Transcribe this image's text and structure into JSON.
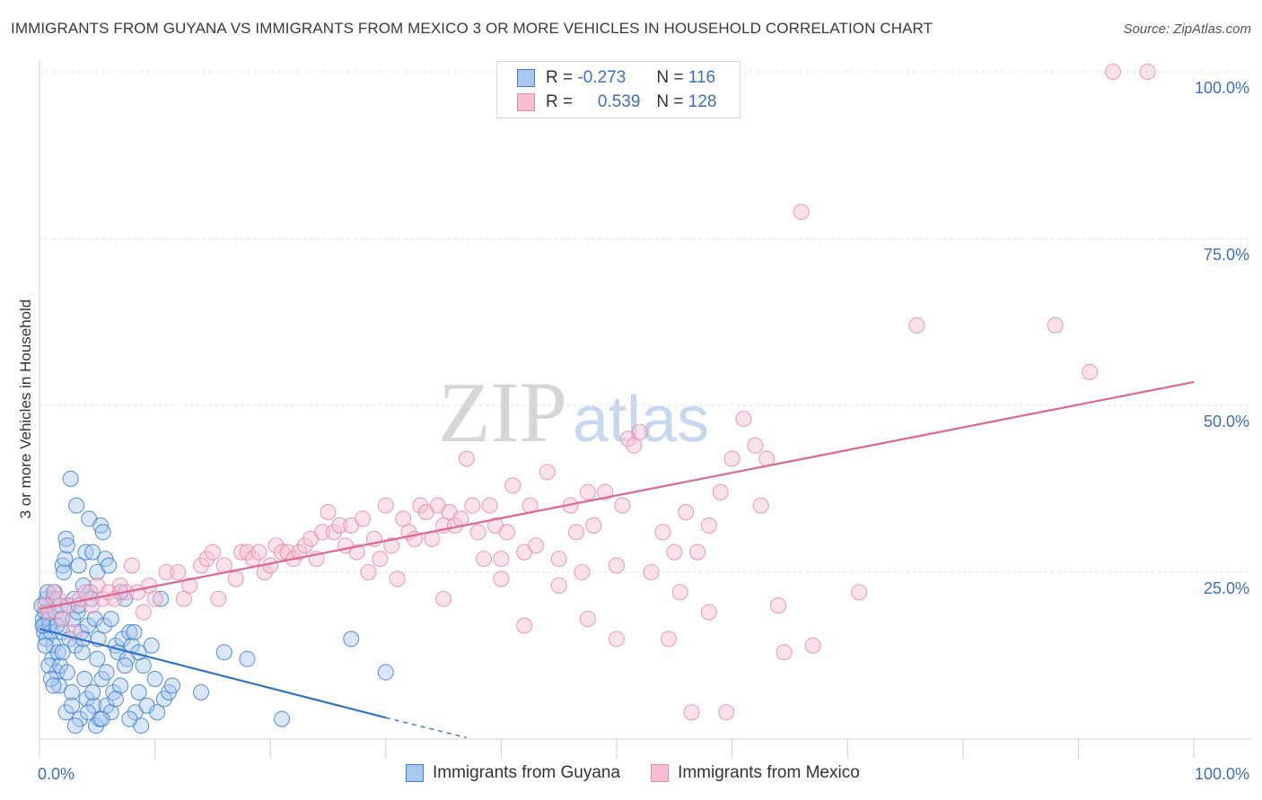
{
  "header": {
    "title": "IMMIGRANTS FROM GUYANA VS IMMIGRANTS FROM MEXICO 3 OR MORE VEHICLES IN HOUSEHOLD CORRELATION CHART",
    "source": "Source: ZipAtlas.com"
  },
  "legend": {
    "r_label": "R =",
    "n_label": "N =",
    "guyana": {
      "r": "-0.273",
      "n": "116"
    },
    "mexico": {
      "r": "0.539",
      "n": "128"
    }
  },
  "watermark": {
    "zip": "ZIP",
    "atlas": "atlas"
  },
  "colors": {
    "guyana_fill": "#a9c8ee",
    "guyana_stroke": "#3f7fd0",
    "guyana_line": "#2f74cf",
    "mexico_fill": "#f6bed0",
    "mexico_stroke": "#e88aa9",
    "mexico_line": "#e0668f",
    "tick_label": "#3b6fc4",
    "grid": "#dcdcdc"
  },
  "chart_data": {
    "type": "scatter",
    "title": "IMMIGRANTS FROM GUYANA VS IMMIGRANTS FROM MEXICO 3 OR MORE VEHICLES IN HOUSEHOLD CORRELATION CHART",
    "xlabel": "",
    "ylabel": "3 or more Vehicles in Household",
    "xlim": [
      0,
      100
    ],
    "ylim": [
      0,
      100
    ],
    "x_tick_labels": [
      "0.0%",
      "100.0%"
    ],
    "y_ticks": [
      25,
      50,
      75,
      100
    ],
    "y_tick_labels": [
      "25.0%",
      "50.0%",
      "75.0%",
      "100.0%"
    ],
    "grid": true,
    "legend_position": "top-center",
    "series": [
      {
        "name": "Immigrants from Guyana",
        "r": -0.273,
        "n": 116,
        "trend": {
          "x0": 0,
          "y0": 16.5,
          "x1": 30,
          "y1": 3.2,
          "dash_to_x": 37,
          "dash_to_y": 0.2
        },
        "points": [
          [
            0.2,
            20
          ],
          [
            0.3,
            18
          ],
          [
            0.4,
            17
          ],
          [
            0.4,
            16
          ],
          [
            0.5,
            19
          ],
          [
            0.6,
            21
          ],
          [
            0.6,
            15
          ],
          [
            0.7,
            22
          ],
          [
            0.8,
            18
          ],
          [
            0.9,
            17
          ],
          [
            1.0,
            16
          ],
          [
            1.1,
            12
          ],
          [
            1.2,
            14
          ],
          [
            1.2,
            21
          ],
          [
            1.3,
            22
          ],
          [
            1.4,
            19
          ],
          [
            1.5,
            10
          ],
          [
            1.6,
            13
          ],
          [
            1.7,
            8
          ],
          [
            1.8,
            20
          ],
          [
            1.9,
            18
          ],
          [
            2.0,
            16
          ],
          [
            2.0,
            26
          ],
          [
            2.1,
            25
          ],
          [
            2.2,
            27
          ],
          [
            2.3,
            30
          ],
          [
            2.3,
            4
          ],
          [
            2.4,
            29
          ],
          [
            2.5,
            20
          ],
          [
            2.6,
            15
          ],
          [
            2.7,
            39
          ],
          [
            2.8,
            7
          ],
          [
            2.9,
            18
          ],
          [
            3.0,
            21
          ],
          [
            3.1,
            14
          ],
          [
            3.2,
            35
          ],
          [
            3.3,
            19
          ],
          [
            3.4,
            26
          ],
          [
            3.5,
            3
          ],
          [
            3.6,
            16
          ],
          [
            3.7,
            13
          ],
          [
            3.8,
            23
          ],
          [
            3.9,
            9
          ],
          [
            4.0,
            28
          ],
          [
            4.1,
            6
          ],
          [
            4.2,
            17
          ],
          [
            4.3,
            33
          ],
          [
            4.4,
            22
          ],
          [
            4.5,
            21
          ],
          [
            4.6,
            28
          ],
          [
            4.7,
            5
          ],
          [
            4.8,
            18
          ],
          [
            4.9,
            2
          ],
          [
            5.0,
            25
          ],
          [
            5.1,
            15
          ],
          [
            5.2,
            3
          ],
          [
            5.3,
            32
          ],
          [
            5.4,
            9
          ],
          [
            5.5,
            31
          ],
          [
            5.6,
            17
          ],
          [
            5.7,
            27
          ],
          [
            5.8,
            5
          ],
          [
            6.0,
            26
          ],
          [
            6.2,
            4
          ],
          [
            6.4,
            7
          ],
          [
            6.6,
            14
          ],
          [
            6.8,
            13
          ],
          [
            7.0,
            8
          ],
          [
            7.2,
            15
          ],
          [
            7.4,
            21
          ],
          [
            7.6,
            12
          ],
          [
            7.8,
            16
          ],
          [
            8.0,
            14
          ],
          [
            8.3,
            4
          ],
          [
            8.6,
            7
          ],
          [
            8.8,
            2
          ],
          [
            9.0,
            11
          ],
          [
            9.3,
            5
          ],
          [
            9.7,
            14
          ],
          [
            10.0,
            9
          ],
          [
            10.2,
            4
          ],
          [
            10.5,
            21
          ],
          [
            10.8,
            6
          ],
          [
            11.2,
            7
          ],
          [
            11.5,
            8
          ],
          [
            14.0,
            7
          ],
          [
            16.0,
            13
          ],
          [
            18.0,
            12
          ],
          [
            21.0,
            3
          ],
          [
            27.0,
            15
          ],
          [
            30.0,
            10
          ],
          [
            0.3,
            17
          ],
          [
            0.5,
            14
          ],
          [
            0.8,
            11
          ],
          [
            1.0,
            9
          ],
          [
            1.2,
            8
          ],
          [
            1.5,
            17
          ],
          [
            1.8,
            11
          ],
          [
            2.0,
            13
          ],
          [
            2.4,
            10
          ],
          [
            2.8,
            5
          ],
          [
            3.1,
            2
          ],
          [
            3.4,
            20
          ],
          [
            3.8,
            15
          ],
          [
            4.2,
            4
          ],
          [
            4.6,
            7
          ],
          [
            5.0,
            12
          ],
          [
            5.4,
            3
          ],
          [
            5.8,
            10
          ],
          [
            6.2,
            18
          ],
          [
            6.6,
            6
          ],
          [
            7.0,
            22
          ],
          [
            7.4,
            11
          ],
          [
            7.8,
            3
          ],
          [
            8.2,
            16
          ],
          [
            8.6,
            13
          ]
        ]
      },
      {
        "name": "Immigrants from Mexico",
        "r": 0.539,
        "n": 128,
        "trend": {
          "x0": 0,
          "y0": 19.5,
          "x1": 100,
          "y1": 53.5
        },
        "points": [
          [
            0.5,
            20
          ],
          [
            0.8,
            19
          ],
          [
            1.2,
            22
          ],
          [
            1.6,
            21
          ],
          [
            2.0,
            18
          ],
          [
            2.5,
            20
          ],
          [
            3.0,
            16
          ],
          [
            3.5,
            21
          ],
          [
            4.0,
            22
          ],
          [
            4.5,
            20
          ],
          [
            5.0,
            23
          ],
          [
            5.5,
            21
          ],
          [
            6.0,
            22
          ],
          [
            6.5,
            21
          ],
          [
            7.0,
            23
          ],
          [
            7.5,
            22
          ],
          [
            8.0,
            26
          ],
          [
            8.5,
            22
          ],
          [
            9.0,
            19
          ],
          [
            9.5,
            23
          ],
          [
            10.0,
            21
          ],
          [
            11.0,
            25
          ],
          [
            12.0,
            25
          ],
          [
            12.5,
            21
          ],
          [
            13.0,
            23
          ],
          [
            14.0,
            26
          ],
          [
            14.5,
            27
          ],
          [
            15.0,
            28
          ],
          [
            15.5,
            21
          ],
          [
            16.0,
            26
          ],
          [
            17.0,
            24
          ],
          [
            17.5,
            28
          ],
          [
            18.0,
            28
          ],
          [
            18.5,
            27
          ],
          [
            19.0,
            28
          ],
          [
            19.5,
            25
          ],
          [
            20.0,
            26
          ],
          [
            20.5,
            29
          ],
          [
            21.0,
            28
          ],
          [
            21.5,
            28
          ],
          [
            22.0,
            27
          ],
          [
            22.5,
            28
          ],
          [
            23.0,
            29
          ],
          [
            23.5,
            30
          ],
          [
            24.0,
            27
          ],
          [
            24.5,
            31
          ],
          [
            25.0,
            34
          ],
          [
            25.5,
            31
          ],
          [
            26.0,
            32
          ],
          [
            26.5,
            29
          ],
          [
            27.0,
            32
          ],
          [
            27.5,
            28
          ],
          [
            28.0,
            33
          ],
          [
            28.5,
            25
          ],
          [
            29.0,
            30
          ],
          [
            29.5,
            27
          ],
          [
            30.0,
            35
          ],
          [
            30.5,
            29
          ],
          [
            31.0,
            24
          ],
          [
            31.5,
            33
          ],
          [
            32.0,
            31
          ],
          [
            32.5,
            30
          ],
          [
            33.0,
            35
          ],
          [
            33.5,
            34
          ],
          [
            34.0,
            30
          ],
          [
            34.5,
            35
          ],
          [
            35.0,
            32
          ],
          [
            35.5,
            34
          ],
          [
            36.0,
            32
          ],
          [
            36.5,
            33
          ],
          [
            37.0,
            42
          ],
          [
            37.5,
            35
          ],
          [
            38.0,
            31
          ],
          [
            38.5,
            27
          ],
          [
            39.0,
            35
          ],
          [
            39.5,
            32
          ],
          [
            40.0,
            27
          ],
          [
            40.5,
            31
          ],
          [
            41.0,
            38
          ],
          [
            42.0,
            28
          ],
          [
            42.5,
            35
          ],
          [
            43.0,
            29
          ],
          [
            44.0,
            40
          ],
          [
            45.0,
            27
          ],
          [
            46.0,
            35
          ],
          [
            46.5,
            31
          ],
          [
            47.0,
            25
          ],
          [
            47.5,
            37
          ],
          [
            48.0,
            32
          ],
          [
            49.0,
            37
          ],
          [
            50.0,
            26
          ],
          [
            50.5,
            35
          ],
          [
            51.0,
            45
          ],
          [
            51.5,
            44
          ],
          [
            52.0,
            46
          ],
          [
            53.0,
            25
          ],
          [
            54.0,
            31
          ],
          [
            55.0,
            28
          ],
          [
            55.5,
            22
          ],
          [
            56.0,
            34
          ],
          [
            57.0,
            28
          ],
          [
            58.0,
            32
          ],
          [
            59.0,
            37
          ],
          [
            60.0,
            42
          ],
          [
            61.0,
            48
          ],
          [
            62.0,
            44
          ],
          [
            62.5,
            35
          ],
          [
            63.0,
            42
          ],
          [
            64.0,
            20
          ],
          [
            66.0,
            79
          ],
          [
            67.0,
            14
          ],
          [
            71.0,
            22
          ],
          [
            76.0,
            62
          ],
          [
            88.0,
            62
          ],
          [
            91.0,
            55
          ],
          [
            93.0,
            100
          ],
          [
            96.0,
            100
          ],
          [
            42.0,
            17
          ],
          [
            45.0,
            23
          ],
          [
            47.5,
            18
          ],
          [
            50.0,
            15
          ],
          [
            54.5,
            15
          ],
          [
            56.5,
            4
          ],
          [
            59.5,
            4
          ],
          [
            64.5,
            13
          ],
          [
            40.0,
            24
          ],
          [
            35.0,
            21
          ],
          [
            58.0,
            19
          ]
        ]
      }
    ]
  },
  "bottom_legend": {
    "guyana_label": "Immigrants from Guyana",
    "mexico_label": "Immigrants from Mexico"
  }
}
